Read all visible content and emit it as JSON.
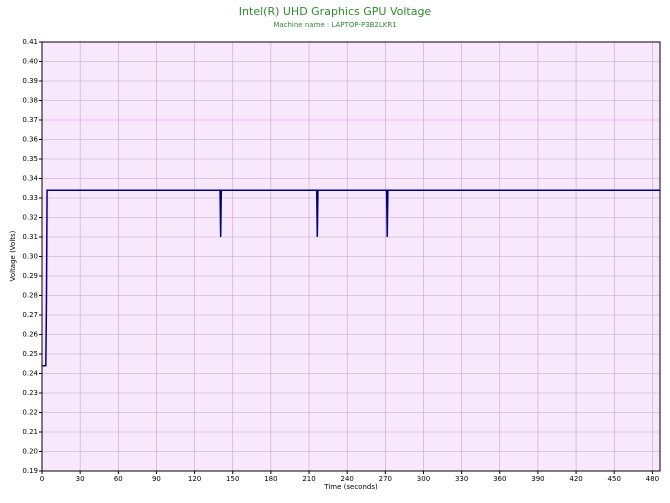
{
  "chart_data": {
    "type": "line",
    "title": "Intel(R) UHD Graphics GPU Voltage",
    "subtitle": "Machine name : LAPTOP-P3B2LKR1",
    "x_label": "Time (seconds)",
    "y_label": "Voltage (Volts)",
    "x": [
      0,
      3,
      3.5,
      4,
      140,
      140.5,
      141,
      216,
      216.5,
      217,
      271,
      271.5,
      272,
      486
    ],
    "series": [
      {
        "name": "GPU Voltage",
        "color": "#00007f",
        "values": [
          0.244,
          0.244,
          0.277,
          0.334,
          0.334,
          0.31,
          0.334,
          0.334,
          0.31,
          0.334,
          0.334,
          0.31,
          0.334,
          0.334
        ]
      }
    ],
    "xlim": [
      0,
      486
    ],
    "ylim": [
      0.19,
      0.41
    ],
    "xticks": [
      0,
      30,
      60,
      90,
      120,
      150,
      180,
      210,
      240,
      270,
      300,
      330,
      360,
      390,
      420,
      450,
      480
    ],
    "yticks": [
      0.19,
      {
        "value": 0.2,
        "label": "0.20"
      },
      0.21,
      0.22,
      0.23,
      0.24,
      0.25,
      0.26,
      0.27,
      0.28,
      0.29,
      {
        "value": 0.3,
        "label": "0.30"
      },
      0.31,
      0.32,
      0.33,
      0.34,
      0.35,
      0.36,
      0.37,
      0.38,
      0.39,
      {
        "value": 0.4,
        "label": "0.40"
      },
      0.41
    ],
    "grid": true
  }
}
